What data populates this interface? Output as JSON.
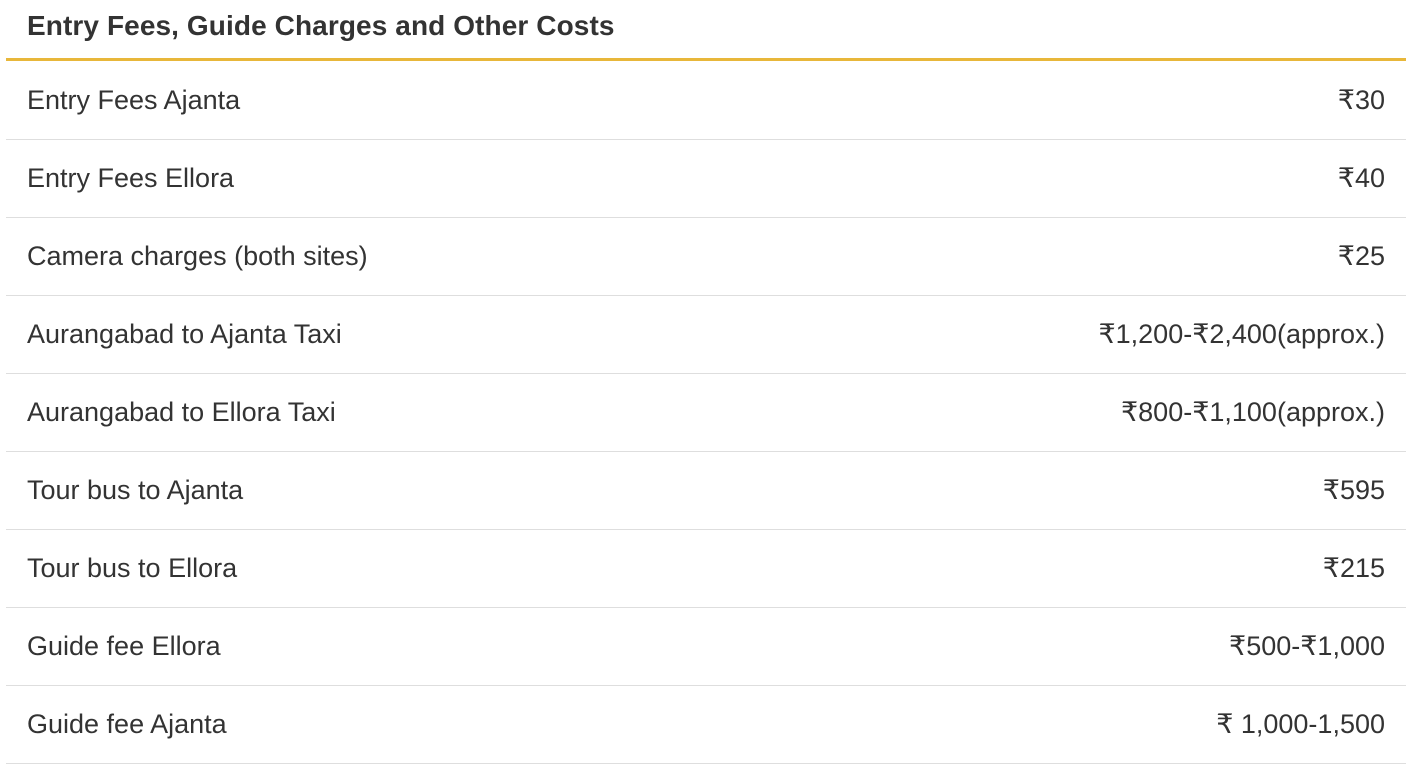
{
  "table": {
    "title": "Entry Fees, Guide Charges and Other Costs",
    "accent_color": "#e8b73a",
    "rows": [
      {
        "label": "Entry Fees Ajanta",
        "value": "₹30"
      },
      {
        "label": "Entry Fees Ellora",
        "value": "₹40"
      },
      {
        "label": "Camera charges (both sites)",
        "value": "₹25"
      },
      {
        "label": "Aurangabad to Ajanta Taxi",
        "value": "₹1,200-₹2,400(approx.)"
      },
      {
        "label": "Aurangabad to Ellora Taxi",
        "value": "₹800-₹1,100(approx.)"
      },
      {
        "label": "Tour bus to Ajanta",
        "value": "₹595"
      },
      {
        "label": "Tour bus to Ellora",
        "value": "₹215"
      },
      {
        "label": "Guide fee Ellora",
        "value": "₹500-₹1,000"
      },
      {
        "label": "Guide fee Ajanta",
        "value": "₹ 1,000-1,500"
      }
    ]
  }
}
